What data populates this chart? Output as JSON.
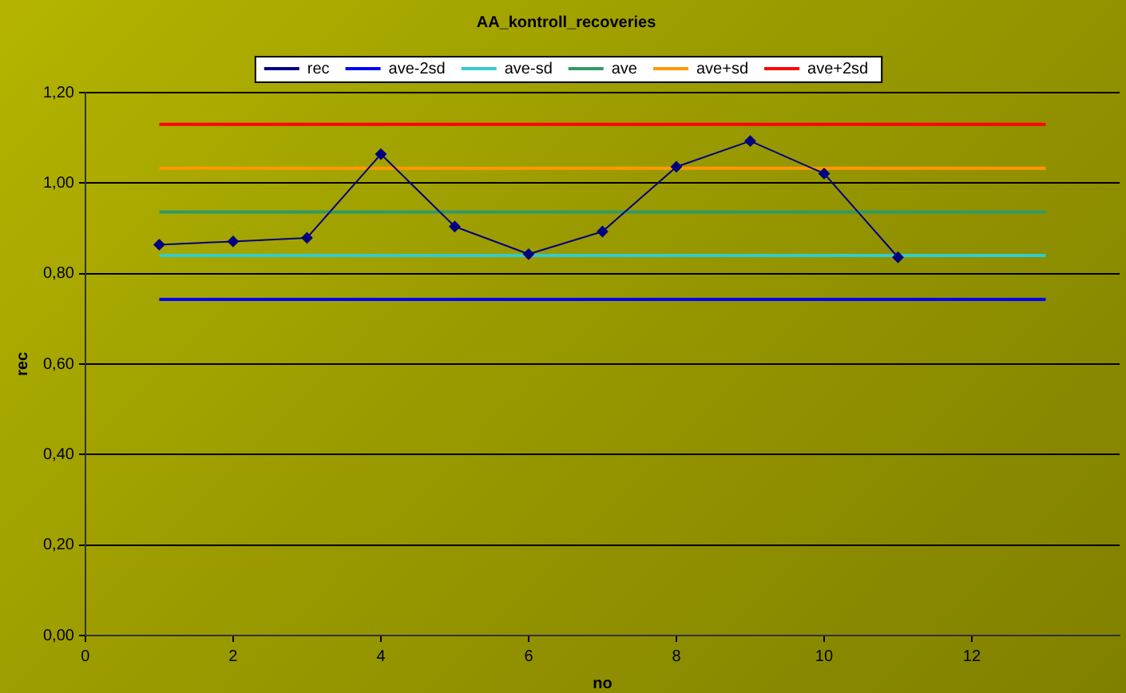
{
  "chart_data": {
    "type": "line",
    "title": "AA_kontroll_recoveries",
    "xlabel": "no",
    "ylabel": "rec",
    "xlim": [
      0,
      14
    ],
    "xticks": [
      0,
      2,
      4,
      6,
      8,
      10,
      12
    ],
    "ylim": [
      0,
      1.2
    ],
    "yticks": [
      {
        "value": 0,
        "label": "0,00"
      },
      {
        "value": 0.2,
        "label": "0,20"
      },
      {
        "value": 0.4,
        "label": "0,40"
      },
      {
        "value": 0.6,
        "label": "0,60"
      },
      {
        "value": 0.8,
        "label": "0,80"
      },
      {
        "value": 1,
        "label": "1,00"
      },
      {
        "value": 1.2,
        "label": "1,20"
      }
    ],
    "grid": "y",
    "legend": "top",
    "series": [
      {
        "name": "rec",
        "color": "#000080",
        "marker": "diamond",
        "x": [
          1,
          2,
          3,
          4,
          5,
          6,
          7,
          8,
          9,
          10,
          11
        ],
        "values": [
          0.864,
          0.871,
          0.879,
          1.064,
          0.904,
          0.843,
          0.893,
          1.036,
          1.093,
          1.021,
          0.836
        ]
      },
      {
        "name": "ave-2sd",
        "color": "#0000ff",
        "marker": "none",
        "x": [
          1,
          13
        ],
        "values": [
          0.743,
          0.743
        ]
      },
      {
        "name": "ave-sd",
        "color": "#33cccc",
        "marker": "none",
        "x": [
          1,
          13
        ],
        "values": [
          0.84,
          0.84
        ]
      },
      {
        "name": "ave",
        "color": "#339966",
        "marker": "none",
        "x": [
          1,
          13
        ],
        "values": [
          0.936,
          0.936
        ]
      },
      {
        "name": "ave+sd",
        "color": "#ff9900",
        "marker": "none",
        "x": [
          1,
          13
        ],
        "values": [
          1.033,
          1.033
        ]
      },
      {
        "name": "ave+2sd",
        "color": "#ff0000",
        "marker": "none",
        "x": [
          1,
          13
        ],
        "values": [
          1.13,
          1.13
        ]
      }
    ]
  }
}
